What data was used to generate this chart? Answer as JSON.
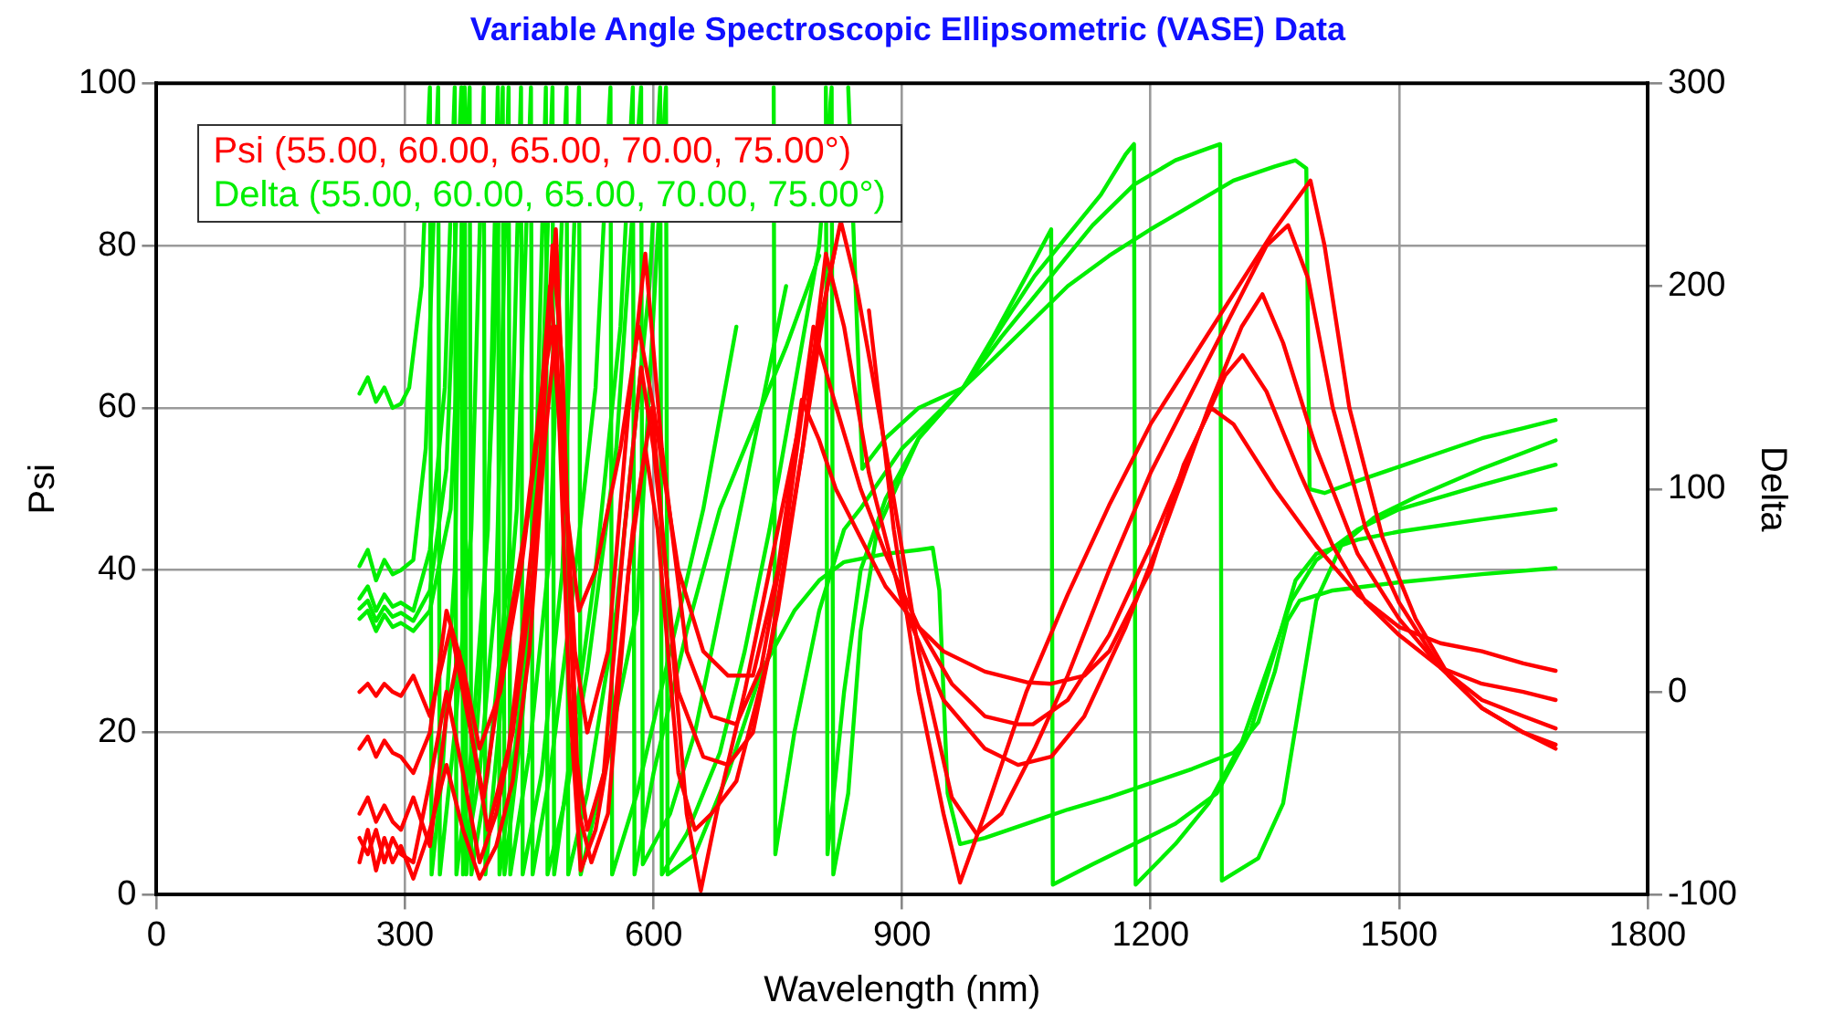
{
  "chart_data": {
    "type": "line",
    "title": "Variable Angle Spectroscopic Ellipsometric (VASE) Data",
    "xlabel": "Wavelength (nm)",
    "ylabel": "Psi",
    "y2label": "Delta",
    "xlim": [
      0,
      1800
    ],
    "xticks": [
      0,
      300,
      600,
      900,
      1200,
      1500,
      1800
    ],
    "ylim": [
      0,
      100
    ],
    "yticks": [
      0,
      20,
      40,
      60,
      80,
      100
    ],
    "y2lim": [
      -100,
      300
    ],
    "y2ticks": [
      -100,
      0,
      100,
      200,
      300
    ],
    "grid": true,
    "legend": "top left",
    "marker": "none",
    "line_style": "solid",
    "series": [
      {
        "name": "Psi (55.00, 60.00, 65.00, 70.00, 75.00°)",
        "color": "#ff0000",
        "axis": "y",
        "x": [
          245,
          255,
          265,
          275,
          285,
          295,
          310,
          330,
          355,
          370,
          395,
          420,
          445,
          465,
          478,
          492,
          510,
          530,
          560,
          582,
          600,
          630,
          660,
          690,
          720,
          750,
          779,
          800,
          820,
          850,
          880,
          920,
          950,
          1000,
          1050,
          1080,
          1120,
          1150,
          1200,
          1240,
          1273,
          1300,
          1350,
          1400,
          1450,
          1500,
          1550,
          1600,
          1650,
          1689
        ],
        "values": [
          25,
          26,
          24.5,
          26,
          25,
          24.5,
          27,
          22,
          33,
          25,
          12,
          30,
          45,
          62,
          70,
          50,
          35,
          40,
          55,
          70,
          60,
          40,
          30,
          27,
          27,
          40,
          61,
          56,
          50,
          44,
          38,
          33,
          30,
          27.5,
          26.2,
          26,
          27,
          30,
          40,
          53,
          60,
          58,
          50,
          43,
          37,
          33,
          31,
          30,
          28.5,
          27.6
        ]
      },
      {
        "color": "#ff0000",
        "axis": "y",
        "x": [
          245,
          255,
          265,
          275,
          285,
          295,
          310,
          330,
          350,
          370,
          390,
          415,
          440,
          462,
          475,
          488,
          505,
          520,
          545,
          570,
          590,
          610,
          640,
          670,
          700,
          730,
          760,
          793,
          815,
          850,
          880,
          920,
          960,
          1000,
          1040,
          1058,
          1100,
          1150,
          1200,
          1250,
          1290,
          1311,
          1340,
          1380,
          1420,
          1460,
          1500,
          1550,
          1600,
          1650,
          1689
        ],
        "values": [
          18,
          19.5,
          17,
          19,
          17.5,
          17,
          15,
          20,
          35,
          28,
          18,
          25,
          40,
          58,
          75,
          60,
          30,
          20,
          30,
          60,
          79,
          55,
          30,
          22,
          21,
          28,
          45,
          70,
          62,
          50,
          42,
          33,
          26,
          22,
          21,
          21,
          24,
          32,
          43,
          55,
          64,
          66.5,
          62,
          52,
          43,
          36,
          32,
          28,
          26,
          25,
          24
        ]
      },
      {
        "color": "#ff0000",
        "axis": "y",
        "x": [
          245,
          255,
          265,
          275,
          285,
          295,
          310,
          330,
          350,
          365,
          380,
          400,
          425,
          445,
          465,
          478,
          490,
          505,
          520,
          540,
          565,
          585,
          600,
          630,
          660,
          690,
          720,
          750,
          780,
          808,
          830,
          860,
          900,
          950,
          1000,
          1040,
          1080,
          1120,
          1170,
          1220,
          1270,
          1310,
          1335,
          1360,
          1400,
          1450,
          1500,
          1550,
          1600,
          1650,
          1689
        ],
        "values": [
          10,
          12,
          9,
          11,
          9,
          8,
          12,
          6,
          22,
          30,
          20,
          8,
          18,
          35,
          55,
          80,
          65,
          18,
          8,
          15,
          45,
          65,
          55,
          25,
          17,
          16,
          20,
          35,
          55,
          79,
          70,
          52,
          36,
          24,
          18,
          16,
          17,
          22,
          33,
          46,
          60,
          70,
          74,
          68,
          55,
          42,
          34,
          28,
          24,
          22,
          20.5
        ]
      },
      {
        "color": "#ff0000",
        "axis": "y",
        "x": [
          245,
          255,
          265,
          275,
          285,
          295,
          310,
          330,
          350,
          370,
          390,
          410,
          430,
          455,
          470,
          482,
          495,
          510,
          525,
          545,
          570,
          590,
          605,
          630,
          650,
          670,
          700,
          740,
          780,
          810,
          826,
          845,
          880,
          920,
          960,
          990,
          1020,
          1060,
          1100,
          1150,
          1200,
          1250,
          1300,
          1340,
          1366,
          1390,
          1420,
          1460,
          1500,
          1550,
          1600,
          1650,
          1689
        ],
        "values": [
          7,
          5,
          8,
          4,
          7,
          5,
          4,
          14,
          25,
          15,
          4,
          10,
          20,
          40,
          65,
          82,
          50,
          10,
          4,
          10,
          40,
          55,
          45,
          15,
          8,
          10,
          14,
          30,
          55,
          75,
          83,
          75,
          55,
          30,
          12,
          7.5,
          10,
          18,
          27,
          40,
          52,
          62,
          72,
          80,
          82.5,
          76,
          60,
          45,
          36,
          28,
          23,
          20,
          18.5
        ]
      },
      {
        "color": "#ff0000",
        "axis": "y",
        "x": [
          245,
          255,
          265,
          275,
          285,
          295,
          310,
          330,
          350,
          370,
          390,
          410,
          430,
          450,
          468,
          482,
          498,
          512,
          530,
          550,
          575,
          598,
          615,
          640,
          657,
          680,
          710,
          750,
          790,
          820,
          837,
          860,
          890,
          920,
          950,
          970,
          1000,
          1050,
          1100,
          1150,
          1200,
          1250,
          1300,
          1350,
          1393,
          1410,
          1440,
          1480,
          1520,
          1560,
          1600,
          1650,
          1689
        ],
        "values": [
          4,
          8,
          3,
          7,
          4,
          6,
          2,
          8,
          16,
          8,
          2,
          6,
          14,
          30,
          55,
          70,
          25,
          3,
          8,
          20,
          45,
          60,
          40,
          10,
          0.5,
          12,
          25,
          45,
          65,
          80,
          null,
          72,
          45,
          25,
          10,
          1.5,
          10,
          25,
          37,
          48,
          58,
          66,
          74,
          82,
          88,
          80,
          60,
          44,
          34,
          27,
          23,
          20,
          18
        ]
      },
      {
        "name": "Delta (55.00, 60.00, 65.00, 70.00, 75.00°)",
        "color": "#00ee00",
        "axis": "y2",
        "x": [
          245,
          255,
          265,
          275,
          285,
          295,
          305,
          320,
          330,
          332,
          345,
          360,
          372,
          374,
          390,
          405,
          418,
          420,
          440,
          460,
          478,
          480,
          500,
          530,
          560,
          575,
          577,
          600,
          640,
          680,
          720,
          760,
          800,
          830,
          835,
          852,
          880,
          920,
          974,
          1000,
          1050,
          1100,
          1150,
          1200,
          1250,
          1300,
          1350,
          1375,
          1388,
          1392,
          1410,
          1450,
          1500,
          1550,
          1600,
          1650,
          1689
        ],
        "values": [
          147,
          155,
          143,
          150,
          140,
          142,
          150,
          200,
          298,
          -90,
          -40,
          60,
          298,
          -90,
          0,
          140,
          298,
          -90,
          -20,
          80,
          298,
          -90,
          -30,
          60,
          180,
          298,
          -90,
          -40,
          30,
          90,
          130,
          170,
          215,
          null,
          298,
          110,
          125,
          140,
          150,
          160,
          180,
          200,
          215,
          228,
          240,
          252,
          259,
          262,
          258,
          100,
          98,
          104,
          111,
          118,
          125,
          130,
          134
        ]
      },
      {
        "color": "#00ee00",
        "axis": "y2",
        "x": [
          245,
          255,
          265,
          275,
          285,
          295,
          310,
          325,
          340,
          342,
          360,
          380,
          395,
          397,
          415,
          435,
          452,
          454,
          475,
          500,
          530,
          548,
          550,
          580,
          620,
          660,
          700,
          730,
          745,
          747,
          770,
          800,
          830,
          851,
          900,
          974,
          1020,
          1080,
          1130,
          1180,
          1230,
          1270,
          1284,
          1286,
          1330,
          1360,
          1380,
          1400,
          1430,
          1470,
          1520,
          1600,
          1689
        ],
        "values": [
          62,
          70,
          55,
          65,
          58,
          60,
          65,
          120,
          298,
          -90,
          -20,
          80,
          298,
          -90,
          -10,
          90,
          298,
          -90,
          -40,
          40,
          150,
          298,
          -90,
          -50,
          20,
          90,
          180,
          null,
          298,
          -80,
          -20,
          40,
          80,
          91,
          120,
          150,
          175,
          205,
          230,
          250,
          262,
          268,
          270,
          -93,
          -82,
          -55,
          -5,
          45,
          72,
          86,
          96,
          110,
          124
        ]
      },
      {
        "color": "#00ee00",
        "axis": "y2",
        "x": [
          245,
          255,
          265,
          275,
          285,
          295,
          310,
          330,
          348,
          360,
          362,
          380,
          400,
          412,
          414,
          435,
          455,
          470,
          472,
          495,
          520,
          555,
          585,
          587,
          620,
          650,
          680,
          720,
          760,
          790,
          808,
          810,
          830,
          850,
          880,
          920,
          974,
          1020,
          1060,
          1100,
          1140,
          1170,
          1180,
          1182,
          1230,
          1270,
          1310,
          1340,
          1370,
          1400,
          1450,
          1500,
          1600,
          1689
        ],
        "values": [
          46,
          52,
          40,
          48,
          42,
          44,
          40,
          70,
          150,
          298,
          -90,
          -30,
          80,
          298,
          -90,
          -20,
          60,
          298,
          -90,
          -50,
          10,
          120,
          298,
          -85,
          -60,
          -20,
          40,
          120,
          200,
          null,
          298,
          -80,
          0,
          60,
          95,
          125,
          150,
          180,
          205,
          225,
          245,
          265,
          270,
          -95,
          -75,
          -55,
          -25,
          10,
          45,
          65,
          80,
          90,
          102,
          112
        ]
      },
      {
        "color": "#00ee00",
        "axis": "y2",
        "x": [
          245,
          255,
          265,
          275,
          285,
          295,
          310,
          330,
          350,
          368,
          370,
          390,
          410,
          425,
          427,
          450,
          475,
          495,
          497,
          520,
          555,
          595,
          608,
          610,
          640,
          680,
          710,
          740,
          770,
          800,
          815,
          817,
          835,
          850,
          870,
          920,
          974,
          1010,
          1050,
          1080,
          1082,
          1130,
          1180,
          1230,
          1280,
          1320,
          1350,
          1375,
          1400,
          1450,
          1500,
          1600,
          1689
        ],
        "values": [
          41,
          45,
          35,
          42,
          37,
          39,
          35,
          50,
          110,
          298,
          -90,
          -40,
          50,
          298,
          -90,
          -30,
          70,
          298,
          -90,
          -50,
          40,
          200,
          298,
          -90,
          -70,
          -30,
          20,
          80,
          150,
          220,
          298,
          -90,
          -50,
          30,
          80,
          125,
          150,
          175,
          205,
          228,
          -95,
          -85,
          -75,
          -65,
          -50,
          -20,
          20,
          55,
          68,
          75,
          79,
          85,
          90
        ]
      },
      {
        "color": "#00ee00",
        "axis": "y2",
        "x": [
          245,
          255,
          265,
          275,
          285,
          295,
          310,
          330,
          355,
          378,
          380,
          400,
          425,
          440,
          442,
          465,
          490,
          510,
          512,
          540,
          580,
          615,
          617,
          650,
          690,
          730,
          770,
          800,
          830,
          880,
          920,
          937,
          945,
          955,
          970,
          1000,
          1050,
          1100,
          1150,
          1200,
          1250,
          1300,
          1330,
          1350,
          1365,
          1380,
          1420,
          1500,
          1600,
          1689
        ],
        "values": [
          36,
          40,
          30,
          38,
          32,
          34,
          30,
          40,
          90,
          298,
          -90,
          -40,
          60,
          298,
          -90,
          -40,
          60,
          298,
          -90,
          -40,
          40,
          298,
          -90,
          -80,
          -40,
          10,
          40,
          55,
          64,
          68,
          70,
          71,
          50,
          -50,
          -75,
          -72,
          -65,
          -58,
          -52,
          -45,
          -38,
          -30,
          -15,
          10,
          35,
          45,
          50,
          54,
          58,
          61
        ]
      }
    ]
  }
}
